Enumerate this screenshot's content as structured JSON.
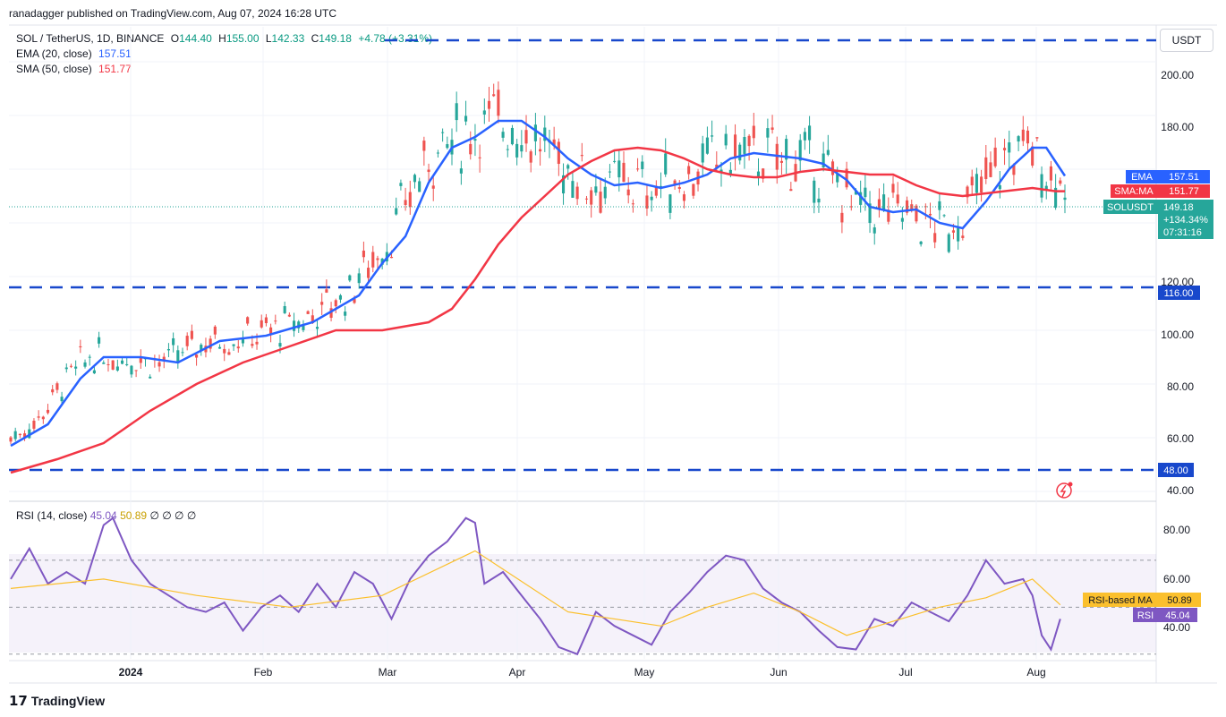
{
  "header": {
    "publisher_text": "ranadagger published on TradingView.com, Aug 07, 2024 16:28 UTC"
  },
  "legend": {
    "symbol": "SOL / TetherUS, 1D, BINANCE",
    "open_label": "O",
    "open": "144.40",
    "high_label": "H",
    "high": "155.00",
    "low_label": "L",
    "low": "142.33",
    "close_label": "C",
    "close": "149.18",
    "change": "+4.78 (+3.31%)",
    "ema_label": "EMA (20, close)",
    "ema_value": "157.51",
    "sma_label": "SMA (50, close)",
    "sma_value": "151.77"
  },
  "currency_button": "USDT",
  "price_axis": {
    "ticks": [
      "200.00",
      "180.00",
      "120.00",
      "100.00",
      "80.00",
      "60.00",
      "40.00"
    ],
    "badges": {
      "ema_tag": "EMA",
      "ema_val": "157.51",
      "sma_tag": "SMA:MA",
      "sma_val": "151.77",
      "sym_tag": "SOLUSDT",
      "sym_val": "149.18",
      "sym_change": "+134.34%",
      "sym_time": "07:31:16",
      "level_116": "116.00",
      "level_48": "48.00"
    }
  },
  "rsi": {
    "label": "RSI (14, close)",
    "value": "45.04",
    "ma_value": "50.89",
    "extras": "∅ ∅ ∅ ∅",
    "ticks": [
      "80.00",
      "60.00",
      "40.00"
    ],
    "ma_tag": "RSI-based MA",
    "ma_val": "50.89",
    "rsi_tag": "RSI",
    "rsi_val": "45.04"
  },
  "time_axis": {
    "labels": [
      "2024",
      "Feb",
      "Mar",
      "Apr",
      "May",
      "Jun",
      "Jul",
      "Aug"
    ]
  },
  "footer": {
    "brand": "TradingView"
  },
  "colors": {
    "up": "#26a69a",
    "down": "#ef5350",
    "ema": "#2962ff",
    "sma": "#f23645",
    "level": "#1848cc",
    "rsi": "#7e57c2",
    "rsi_ma": "#fbc02d"
  },
  "chart_data": {
    "type": "candlestick",
    "title": "SOL / TetherUS, 1D, BINANCE",
    "ylim": [
      37,
      213
    ],
    "horizontal_levels": [
      208,
      116,
      48
    ],
    "series": [
      {
        "name": "EMA (20, close)",
        "points": [
          [
            0,
            57
          ],
          [
            8,
            65
          ],
          [
            15,
            82
          ],
          [
            20,
            90
          ],
          [
            28,
            90
          ],
          [
            36,
            88
          ],
          [
            45,
            96
          ],
          [
            55,
            98
          ],
          [
            65,
            103
          ],
          [
            70,
            108
          ],
          [
            75,
            113
          ],
          [
            80,
            125
          ],
          [
            85,
            135
          ],
          [
            90,
            155
          ],
          [
            95,
            168
          ],
          [
            100,
            172
          ],
          [
            105,
            178
          ],
          [
            110,
            178
          ],
          [
            115,
            172
          ],
          [
            120,
            164
          ],
          [
            125,
            158
          ],
          [
            130,
            154
          ],
          [
            135,
            155
          ],
          [
            140,
            153
          ],
          [
            145,
            155
          ],
          [
            150,
            158
          ],
          [
            155,
            164
          ],
          [
            160,
            166
          ],
          [
            165,
            165
          ],
          [
            170,
            164
          ],
          [
            175,
            162
          ],
          [
            180,
            156
          ],
          [
            185,
            146
          ],
          [
            190,
            144
          ],
          [
            195,
            145
          ],
          [
            200,
            140
          ],
          [
            205,
            138
          ],
          [
            210,
            148
          ],
          [
            215,
            160
          ],
          [
            220,
            168
          ],
          [
            223,
            168
          ],
          [
            227,
            157.5
          ]
        ]
      },
      {
        "name": "SMA (50, close)",
        "points": [
          [
            0,
            47
          ],
          [
            10,
            52
          ],
          [
            20,
            58
          ],
          [
            30,
            70
          ],
          [
            40,
            80
          ],
          [
            50,
            88
          ],
          [
            60,
            94
          ],
          [
            70,
            100
          ],
          [
            80,
            100
          ],
          [
            90,
            103
          ],
          [
            95,
            108
          ],
          [
            100,
            119
          ],
          [
            105,
            132
          ],
          [
            110,
            142
          ],
          [
            115,
            150
          ],
          [
            120,
            158
          ],
          [
            125,
            163
          ],
          [
            130,
            167
          ],
          [
            135,
            168
          ],
          [
            140,
            167
          ],
          [
            145,
            164
          ],
          [
            150,
            160
          ],
          [
            155,
            158
          ],
          [
            160,
            157
          ],
          [
            165,
            157
          ],
          [
            170,
            159
          ],
          [
            175,
            160
          ],
          [
            180,
            159
          ],
          [
            185,
            158
          ],
          [
            190,
            158
          ],
          [
            195,
            154
          ],
          [
            200,
            151
          ],
          [
            205,
            150
          ],
          [
            210,
            151
          ],
          [
            215,
            152
          ],
          [
            220,
            153
          ],
          [
            225,
            151.8
          ],
          [
            227,
            151.8
          ]
        ]
      }
    ],
    "rsi_series": [
      {
        "name": "RSI (14, close)",
        "points": [
          [
            0,
            62
          ],
          [
            4,
            75
          ],
          [
            8,
            60
          ],
          [
            12,
            65
          ],
          [
            16,
            60
          ],
          [
            20,
            85
          ],
          [
            22,
            88
          ],
          [
            26,
            70
          ],
          [
            30,
            60
          ],
          [
            34,
            55
          ],
          [
            38,
            50
          ],
          [
            42,
            48
          ],
          [
            46,
            52
          ],
          [
            50,
            40
          ],
          [
            54,
            50
          ],
          [
            58,
            55
          ],
          [
            62,
            48
          ],
          [
            66,
            60
          ],
          [
            70,
            50
          ],
          [
            74,
            65
          ],
          [
            78,
            60
          ],
          [
            82,
            45
          ],
          [
            86,
            62
          ],
          [
            90,
            72
          ],
          [
            94,
            78
          ],
          [
            98,
            88
          ],
          [
            100,
            86
          ],
          [
            102,
            60
          ],
          [
            106,
            65
          ],
          [
            110,
            55
          ],
          [
            114,
            45
          ],
          [
            118,
            33
          ],
          [
            122,
            30
          ],
          [
            126,
            48
          ],
          [
            130,
            42
          ],
          [
            134,
            38
          ],
          [
            138,
            34
          ],
          [
            142,
            48
          ],
          [
            146,
            56
          ],
          [
            150,
            65
          ],
          [
            154,
            72
          ],
          [
            158,
            70
          ],
          [
            162,
            58
          ],
          [
            166,
            52
          ],
          [
            170,
            48
          ],
          [
            174,
            40
          ],
          [
            178,
            33
          ],
          [
            182,
            32
          ],
          [
            186,
            45
          ],
          [
            190,
            42
          ],
          [
            194,
            52
          ],
          [
            198,
            48
          ],
          [
            202,
            44
          ],
          [
            206,
            55
          ],
          [
            210,
            70
          ],
          [
            214,
            60
          ],
          [
            218,
            62
          ],
          [
            220,
            55
          ],
          [
            222,
            38
          ],
          [
            224,
            32
          ],
          [
            226,
            45
          ]
        ]
      },
      {
        "name": "RSI-based MA",
        "points": [
          [
            0,
            58
          ],
          [
            20,
            62
          ],
          [
            40,
            55
          ],
          [
            60,
            50
          ],
          [
            80,
            55
          ],
          [
            100,
            74
          ],
          [
            120,
            48
          ],
          [
            140,
            42
          ],
          [
            150,
            50
          ],
          [
            160,
            56
          ],
          [
            170,
            48
          ],
          [
            180,
            38
          ],
          [
            190,
            44
          ],
          [
            200,
            50
          ],
          [
            210,
            54
          ],
          [
            220,
            62
          ],
          [
            226,
            51
          ]
        ]
      }
    ],
    "rsi_ylim": [
      28,
      94
    ],
    "rsi_levels": [
      70,
      50,
      30
    ]
  }
}
